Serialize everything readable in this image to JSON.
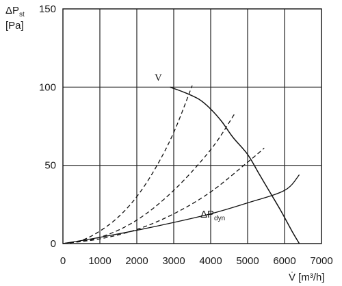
{
  "chart_data": {
    "type": "line",
    "xlabel": "V̇ [m³/h]",
    "ylabel_top": "ΔP",
    "ylabel_sub": "st",
    "ylabel_unit": "[Pa]",
    "xlim": [
      0,
      7000
    ],
    "ylim": [
      0,
      150
    ],
    "xticks": [
      0,
      1000,
      2000,
      3000,
      4000,
      5000,
      6000,
      7000
    ],
    "yticks": [
      0,
      50,
      100,
      150
    ],
    "grid": true,
    "annotations": {
      "fan_label": "V",
      "dyn_label_main": "ΔP",
      "dyn_label_sub": "dyn"
    },
    "series": [
      {
        "style": "solid",
        "role": "fan-curve",
        "points": [
          [
            2900,
            100
          ],
          [
            3300,
            96.5
          ],
          [
            3700,
            92
          ],
          [
            4000,
            86
          ],
          [
            4300,
            78
          ],
          [
            4600,
            68
          ],
          [
            5000,
            57
          ],
          [
            5300,
            45
          ],
          [
            5600,
            33
          ],
          [
            5900,
            21
          ],
          [
            6200,
            8
          ],
          [
            6400,
            0
          ]
        ]
      },
      {
        "style": "solid",
        "role": "dynamic-pressure",
        "points": [
          [
            0,
            0
          ],
          [
            1000,
            4
          ],
          [
            2000,
            8.5
          ],
          [
            3000,
            13.5
          ],
          [
            4000,
            19
          ],
          [
            5000,
            26
          ],
          [
            6000,
            34
          ],
          [
            6400,
            44
          ]
        ]
      },
      {
        "style": "dashed",
        "role": "system-curve",
        "points": [
          [
            0,
            0
          ],
          [
            500,
            2
          ],
          [
            1000,
            8
          ],
          [
            1500,
            17
          ],
          [
            2000,
            30
          ],
          [
            2500,
            48
          ],
          [
            3000,
            71
          ],
          [
            3500,
            101
          ]
        ]
      },
      {
        "style": "dashed",
        "role": "system-curve",
        "points": [
          [
            0,
            0
          ],
          [
            1000,
            4
          ],
          [
            2000,
            15
          ],
          [
            3000,
            34
          ],
          [
            4000,
            60
          ],
          [
            4650,
            83
          ]
        ]
      },
      {
        "style": "dashed",
        "role": "system-curve",
        "points": [
          [
            0,
            0
          ],
          [
            1000,
            3
          ],
          [
            2000,
            9
          ],
          [
            3000,
            19
          ],
          [
            4000,
            33
          ],
          [
            5000,
            52
          ],
          [
            5450,
            61
          ]
        ]
      }
    ]
  }
}
